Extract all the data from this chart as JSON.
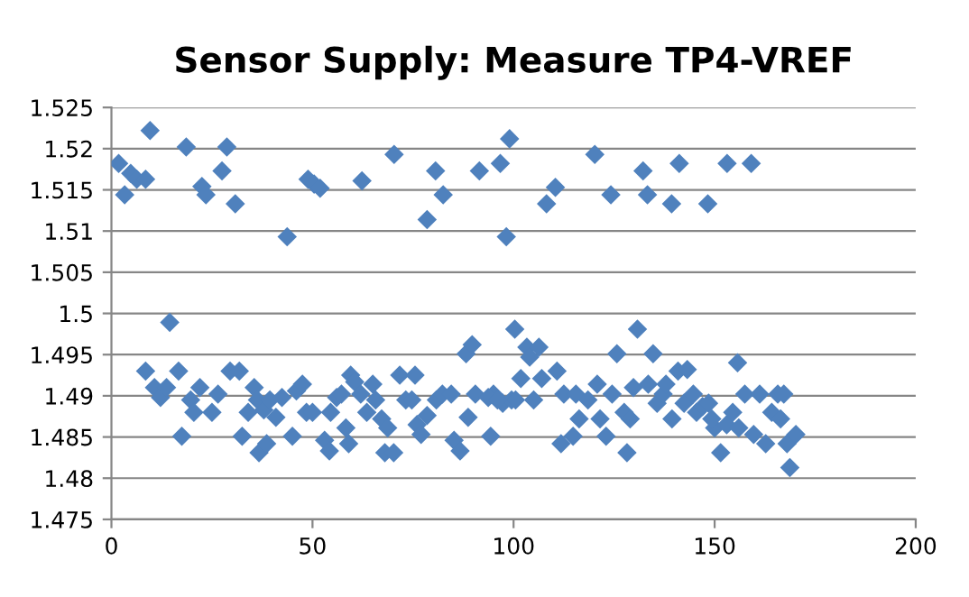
{
  "chart_data": {
    "type": "scatter",
    "title": "Sensor Supply: Measure TP4-VREF",
    "marker": "diamond",
    "grid": "y",
    "xlim": [
      0,
      200
    ],
    "xticks": [
      0,
      50,
      100,
      150,
      200
    ],
    "ylim": [
      1.475,
      1.525
    ],
    "yticks": [
      1.475,
      1.48,
      1.485,
      1.49,
      1.495,
      1.5,
      1.505,
      1.51,
      1.515,
      1.52,
      1.525
    ],
    "series": [
      {
        "color": "#4f81bd",
        "x": [
          1.8,
          3.3,
          4.8,
          6.3,
          8.5,
          9.6,
          18.6,
          22.5,
          23.5,
          27.5,
          28.7,
          30.8,
          43.7,
          48.9,
          50.4,
          51.9,
          62.3,
          70.3,
          78.5,
          80.6,
          82.5,
          91.5,
          96.7,
          98.2,
          99,
          108.2,
          110.4,
          120.2,
          124.2,
          132.2,
          133.3,
          139.3,
          141.2,
          148.3,
          153.1,
          159.1,
          8.5,
          14.5,
          10.7,
          12.2,
          13.7,
          16.7,
          17.5,
          19.7,
          20.5,
          22,
          25,
          26.5,
          29.5,
          31.8,
          32.5,
          34,
          35.5,
          36.3,
          36.7,
          38.6,
          37.9,
          39.4,
          40.9,
          42.4,
          45,
          46,
          47.5,
          48.5,
          50,
          53,
          54.2,
          54.5,
          56,
          57.2,
          58.3,
          59,
          59.5,
          60.5,
          62,
          65,
          63.5,
          65.7,
          67.2,
          68.7,
          68,
          70.2,
          71.7,
          75.5,
          73.2,
          74.7,
          76,
          77,
          78.5,
          80.8,
          82.3,
          84.5,
          85.2,
          86.7,
          88.2,
          89.7,
          88.7,
          90.5,
          94.3,
          95,
          97.3,
          99.5,
          100.3,
          93.7,
          96,
          100.5,
          105,
          103.3,
          104,
          106.3,
          101.8,
          107,
          110.8,
          111.8,
          114.8,
          112.5,
          115.5,
          116.3,
          118.5,
          120.8,
          121.5,
          123,
          124.5,
          125.7,
          127.5,
          128.2,
          129,
          129.8,
          130.8,
          133.5,
          134.7,
          135.7,
          137.2,
          137.9,
          139.4,
          140.9,
          143.2,
          142.4,
          144.7,
          145.5,
          147,
          148.5,
          150,
          151.5,
          149.3,
          153,
          154.5,
          155.7,
          156,
          157.5,
          159.7,
          161.2,
          162.7,
          164.2,
          165.7,
          166.4,
          167.2,
          168,
          168.7,
          170.2
        ],
        "values": [
          1.5182,
          1.5144,
          1.517,
          1.5163,
          1.5163,
          1.5222,
          1.5202,
          1.5154,
          1.5144,
          1.5173,
          1.5202,
          1.5133,
          1.5093,
          1.5163,
          1.5157,
          1.5152,
          1.5161,
          1.5193,
          1.5114,
          1.5173,
          1.5144,
          1.5173,
          1.5182,
          1.5093,
          1.5212,
          1.5133,
          1.5153,
          1.5193,
          1.5144,
          1.5173,
          1.5144,
          1.5133,
          1.5182,
          1.5133,
          1.5182,
          1.5182,
          1.493,
          1.4989,
          1.491,
          1.4898,
          1.491,
          1.493,
          1.4851,
          1.4895,
          1.488,
          1.491,
          1.488,
          1.4902,
          1.493,
          1.493,
          1.4851,
          1.488,
          1.491,
          1.4895,
          1.4831,
          1.4842,
          1.4883,
          1.4895,
          1.4874,
          1.4898,
          1.4851,
          1.4906,
          1.4914,
          1.488,
          1.488,
          1.4846,
          1.4833,
          1.488,
          1.4898,
          1.4902,
          1.4861,
          1.4842,
          1.4925,
          1.4917,
          1.4902,
          1.4914,
          1.488,
          1.4895,
          1.4872,
          1.4861,
          1.4831,
          1.4831,
          1.4925,
          1.4925,
          1.4895,
          1.4895,
          1.4865,
          1.4853,
          1.4876,
          1.4895,
          1.4902,
          1.4902,
          1.4846,
          1.4833,
          1.4951,
          1.4962,
          1.4874,
          1.4902,
          1.4851,
          1.4902,
          1.4891,
          1.4895,
          1.4981,
          1.4898,
          1.4895,
          1.4895,
          1.4895,
          1.4959,
          1.4947,
          1.4959,
          1.4921,
          1.4921,
          1.493,
          1.4842,
          1.4851,
          1.4902,
          1.4902,
          1.4872,
          1.4895,
          1.4914,
          1.4872,
          1.4851,
          1.4902,
          1.4951,
          1.488,
          1.4831,
          1.4872,
          1.491,
          1.4981,
          1.4914,
          1.4951,
          1.4891,
          1.4902,
          1.4914,
          1.4872,
          1.493,
          1.4932,
          1.4891,
          1.4902,
          1.488,
          1.4887,
          1.4891,
          1.4861,
          1.4831,
          1.4872,
          1.4865,
          1.488,
          1.494,
          1.4861,
          1.4902,
          1.4853,
          1.4902,
          1.4842,
          1.488,
          1.4902,
          1.4872,
          1.4902,
          1.4842,
          1.4813,
          1.4853
        ]
      }
    ]
  }
}
